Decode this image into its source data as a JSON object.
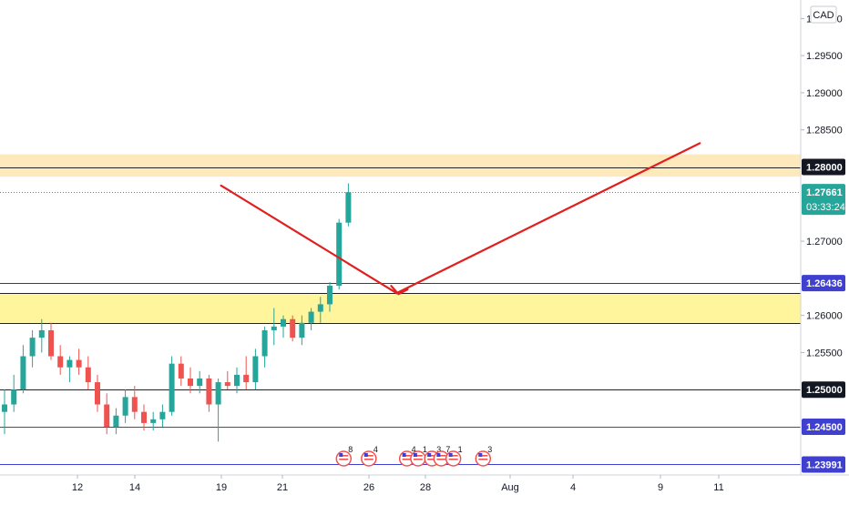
{
  "currency_label": "CAD",
  "colors": {
    "up": "#26a69a",
    "down": "#ef5350",
    "zone_top": "#fde9bb",
    "zone_mid": "#fff59d",
    "projection": "#e02020",
    "black_line": "#222222",
    "blue_line": "#3f3fd0",
    "maroon_line": "#8b1a3a",
    "price_box_up": "#26a69a",
    "price_box_blue": "#3f3fd0",
    "price_box_dark": "#131722"
  },
  "chart_data": {
    "type": "candlestick",
    "title": "",
    "ylim": [
      1.2385,
      1.3025
    ],
    "y_ticks": [
      "1.30000",
      "1.29500",
      "1.29000",
      "1.28500",
      "1.27000",
      "1.26000",
      "1.25500"
    ],
    "x_ticks": [
      "12",
      "14",
      "19",
      "21",
      "26",
      "28",
      "Aug",
      "4",
      "9",
      "11"
    ],
    "current_price": {
      "value": "1.27661",
      "countdown": "03:33:24"
    },
    "price_labels": [
      {
        "value": "1.28000",
        "style": "dark"
      },
      {
        "value": "1.26436",
        "style": "blue"
      },
      {
        "value": "1.25000",
        "style": "dark"
      },
      {
        "value": "1.24500",
        "style": "blue"
      },
      {
        "value": "1.23991",
        "style": "blue"
      }
    ],
    "horizontal_lines": [
      {
        "price": 1.28,
        "kind": "black"
      },
      {
        "price": 1.27661,
        "kind": "dotted"
      },
      {
        "price": 1.26436,
        "kind": "maroon"
      },
      {
        "price": 1.263,
        "kind": "black"
      },
      {
        "price": 1.259,
        "kind": "black"
      },
      {
        "price": 1.25,
        "kind": "black"
      },
      {
        "price": 1.245,
        "kind": "blue"
      },
      {
        "price": 1.23991,
        "kind": "blue"
      }
    ],
    "zones": [
      {
        "from": 1.2787,
        "to": 1.2817,
        "kind": "zone_top"
      },
      {
        "from": 1.259,
        "to": 1.263,
        "kind": "zone_mid"
      }
    ],
    "projection": [
      {
        "day": 19.0,
        "price": 1.2775
      },
      {
        "day": 27.0,
        "price": 1.263
      },
      {
        "day": 41.3,
        "price": 1.2832
      }
    ],
    "candles": [
      [
        1.247,
        1.25,
        1.244,
        1.248
      ],
      [
        1.248,
        1.252,
        1.247,
        1.25
      ],
      [
        1.25,
        1.256,
        1.2495,
        1.2545
      ],
      [
        1.2545,
        1.258,
        1.253,
        1.257
      ],
      [
        1.257,
        1.2595,
        1.255,
        1.258
      ],
      [
        1.258,
        1.259,
        1.254,
        1.2545
      ],
      [
        1.2545,
        1.256,
        1.252,
        1.253
      ],
      [
        1.253,
        1.2545,
        1.251,
        1.254
      ],
      [
        1.254,
        1.2555,
        1.252,
        1.253
      ],
      [
        1.253,
        1.2545,
        1.25,
        1.251
      ],
      [
        1.251,
        1.252,
        1.247,
        1.248
      ],
      [
        1.248,
        1.2495,
        1.244,
        1.245
      ],
      [
        1.245,
        1.2475,
        1.244,
        1.2465
      ],
      [
        1.2465,
        1.25,
        1.2455,
        1.249
      ],
      [
        1.249,
        1.2505,
        1.246,
        1.247
      ],
      [
        1.247,
        1.248,
        1.2445,
        1.2455
      ],
      [
        1.2455,
        1.247,
        1.2445,
        1.246
      ],
      [
        1.246,
        1.248,
        1.245,
        1.247
      ],
      [
        1.247,
        1.2545,
        1.2465,
        1.2535
      ],
      [
        1.2535,
        1.2545,
        1.2505,
        1.2515
      ],
      [
        1.2515,
        1.253,
        1.2495,
        1.2505
      ],
      [
        1.2505,
        1.2525,
        1.2495,
        1.2515
      ],
      [
        1.2515,
        1.252,
        1.247,
        1.248
      ],
      [
        1.248,
        1.2515,
        1.243,
        1.251
      ],
      [
        1.251,
        1.2525,
        1.25,
        1.2505
      ],
      [
        1.2505,
        1.253,
        1.2495,
        1.252
      ],
      [
        1.252,
        1.2545,
        1.25,
        1.251
      ],
      [
        1.251,
        1.2555,
        1.25,
        1.2545
      ],
      [
        1.2545,
        1.2585,
        1.253,
        1.258
      ],
      [
        1.258,
        1.261,
        1.256,
        1.2585
      ],
      [
        1.2585,
        1.26,
        1.257,
        1.2595
      ],
      [
        1.2595,
        1.26,
        1.2565,
        1.257
      ],
      [
        1.257,
        1.26,
        1.256,
        1.259
      ],
      [
        1.259,
        1.261,
        1.258,
        1.2605
      ],
      [
        1.2605,
        1.2625,
        1.259,
        1.2615
      ],
      [
        1.2615,
        1.2645,
        1.2605,
        1.264
      ],
      [
        1.264,
        1.273,
        1.2635,
        1.2725
      ],
      [
        1.2725,
        1.2778,
        1.272,
        1.2766
      ]
    ],
    "event_markers": [
      {
        "slot": 36.5,
        "count": "8"
      },
      {
        "slot": 39.2,
        "count": "4"
      },
      {
        "slot": 43.3,
        "count": "4"
      },
      {
        "slot": 44.5,
        "count": "1"
      },
      {
        "slot": 46.0,
        "count": "3"
      },
      {
        "slot": 47.0,
        "count": "7"
      },
      {
        "slot": 48.3,
        "count": "1"
      },
      {
        "slot": 51.5,
        "count": "3"
      }
    ]
  }
}
